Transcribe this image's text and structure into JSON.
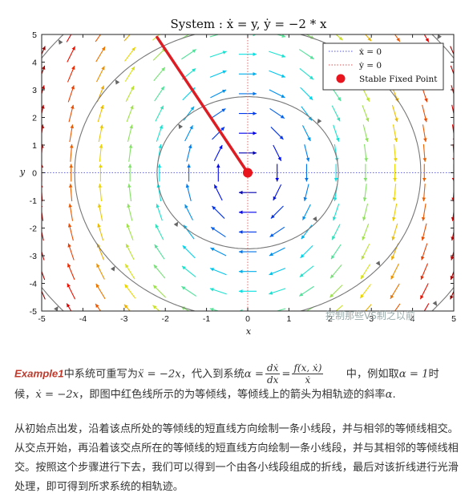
{
  "chart_data": {
    "type": "quiver",
    "title": "System : ẋ = y,  ẏ = −2 * x",
    "xlabel": "x",
    "ylabel": "y",
    "xlim": [
      -5,
      5
    ],
    "ylim": [
      -5,
      5
    ],
    "xticks": [
      "-5",
      "-4",
      "-3",
      "-2",
      "-1",
      "0",
      "1",
      "2",
      "3",
      "4",
      "5"
    ],
    "yticks": [
      "5",
      "4",
      "3",
      "2",
      "1",
      "0",
      "-1",
      "-2",
      "-3",
      "-4",
      "-5"
    ],
    "grid": false,
    "legend_position": "top-right",
    "legend": [
      {
        "label": "ẋ = 0",
        "color": "#5555dd",
        "style": "dotted"
      },
      {
        "label": "ẏ = 0",
        "color": "#dd5555",
        "style": "dotted"
      },
      {
        "label": "Stable Fixed Point",
        "color": "#e8141e",
        "style": "marker"
      }
    ],
    "system": {
      "dx": "y",
      "dy": "-2*x"
    },
    "trajectory_radii": [
      2.2,
      4.2,
      6.0
    ],
    "fixed_point": [
      0,
      0
    ],
    "isocline_segment": {
      "from": [
        -2.2,
        4.9
      ],
      "to": [
        0,
        0
      ],
      "color": "#dd1c24"
    }
  },
  "watermark": "控制那些VS制之以前",
  "para1": {
    "example": "Example1",
    "t1": "中系统可重写为",
    "eq1": "ẍ = −2x",
    "t2": "，代入到系统",
    "alpha_eq": "α =",
    "frac1_num": "dẋ",
    "frac1_den": "dx",
    "eq_sign": "=",
    "frac2_num": "f(x, ẋ)",
    "frac2_den": "ẋ",
    "t3": "中，例如取",
    "alpha1": "α = 1",
    "t4": "时候，",
    "eq2": "ẋ = −2x",
    "t5": "，即图中红色线所示的为等倾线，等倾线上的箭头为相轨迹的斜率",
    "alpha": "α",
    "t6": "."
  },
  "para2": "从初始点出发，沿着该点所处的等倾线的短直线方向绘制一条小线段，并与相邻的等倾线相交。从交点开始，再沿着该交点所在的等倾线的短直线方向绘制一条小线段，并与其相邻的等倾线相交。按照这个步骤进行下去，我们可以得到一个由各小线段组成的折线，最后对该折线进行光滑处理，即可得到所求系统的相轨迹。"
}
